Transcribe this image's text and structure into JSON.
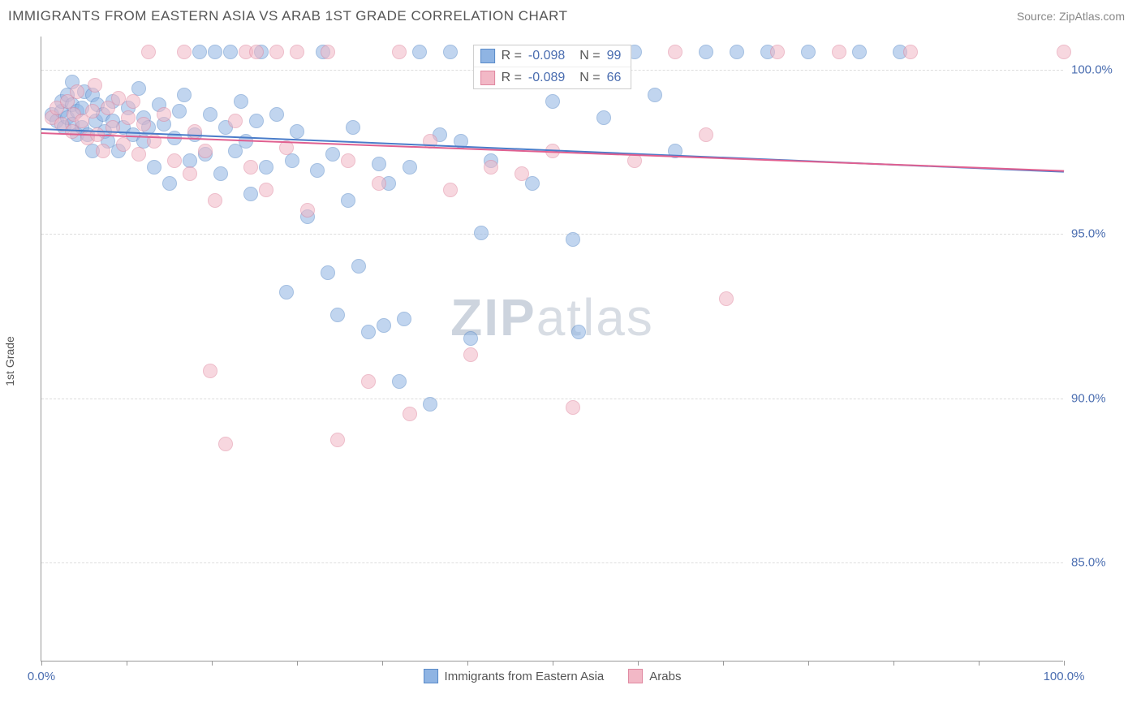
{
  "header": {
    "title": "IMMIGRANTS FROM EASTERN ASIA VS ARAB 1ST GRADE CORRELATION CHART",
    "source": "Source: ZipAtlas.com"
  },
  "chart": {
    "type": "scatter",
    "ylabel": "1st Grade",
    "watermark_bold": "ZIP",
    "watermark_light": "atlas",
    "background_color": "#ffffff",
    "grid_color": "#dddddd",
    "axis_color": "#999999",
    "label_color": "#4a6db0",
    "xlim": [
      0,
      100
    ],
    "ylim": [
      82,
      101
    ],
    "x_ticks": [
      0,
      8.3,
      16.7,
      25,
      33.3,
      41.7,
      50,
      58.3,
      66.7,
      75,
      83.3,
      91.7,
      100
    ],
    "x_tick_labels": {
      "0": "0.0%",
      "100": "100.0%"
    },
    "y_ticks": [
      85,
      90,
      95,
      100
    ],
    "y_tick_labels": {
      "85": "85.0%",
      "90": "90.0%",
      "95": "95.0%",
      "100": "100.0%"
    },
    "marker_size": 18,
    "series": [
      {
        "id": "a",
        "name": "Immigrants from Eastern Asia",
        "fill_color": "#8fb4e3",
        "border_color": "#5a8bc9",
        "trend_color": "#4a7cc9",
        "R": "-0.098",
        "N": "99",
        "trend": {
          "x1": 0,
          "y1": 98.2,
          "x2": 100,
          "y2": 96.9
        },
        "points": [
          [
            1,
            98.6
          ],
          [
            1.5,
            98.4
          ],
          [
            2,
            98.7
          ],
          [
            2,
            99.0
          ],
          [
            2.2,
            98.2
          ],
          [
            2.5,
            98.5
          ],
          [
            2.5,
            99.2
          ],
          [
            3,
            98.3
          ],
          [
            3,
            98.9
          ],
          [
            3,
            99.6
          ],
          [
            3.5,
            98.0
          ],
          [
            3.5,
            98.7
          ],
          [
            4,
            98.2
          ],
          [
            4,
            98.8
          ],
          [
            4.2,
            99.3
          ],
          [
            4.5,
            98.0
          ],
          [
            5,
            99.2
          ],
          [
            5,
            97.5
          ],
          [
            5.3,
            98.4
          ],
          [
            5.5,
            98.9
          ],
          [
            6,
            98.6
          ],
          [
            6.2,
            98.1
          ],
          [
            6.5,
            97.8
          ],
          [
            7,
            98.4
          ],
          [
            7,
            99.0
          ],
          [
            7.5,
            97.5
          ],
          [
            8,
            98.2
          ],
          [
            8.5,
            98.8
          ],
          [
            9,
            98.0
          ],
          [
            9.5,
            99.4
          ],
          [
            10,
            97.8
          ],
          [
            10,
            98.5
          ],
          [
            10.5,
            98.2
          ],
          [
            11,
            97.0
          ],
          [
            11.5,
            98.9
          ],
          [
            12,
            98.3
          ],
          [
            12.5,
            96.5
          ],
          [
            13,
            97.9
          ],
          [
            13.5,
            98.7
          ],
          [
            14,
            99.2
          ],
          [
            14.5,
            97.2
          ],
          [
            15,
            98.0
          ],
          [
            15.5,
            100.5
          ],
          [
            16,
            97.4
          ],
          [
            16.5,
            98.6
          ],
          [
            17,
            100.5
          ],
          [
            17.5,
            96.8
          ],
          [
            18,
            98.2
          ],
          [
            18.5,
            100.5
          ],
          [
            19,
            97.5
          ],
          [
            19.5,
            99.0
          ],
          [
            20,
            97.8
          ],
          [
            20.5,
            96.2
          ],
          [
            21,
            98.4
          ],
          [
            21.5,
            100.5
          ],
          [
            22,
            97.0
          ],
          [
            23,
            98.6
          ],
          [
            24,
            93.2
          ],
          [
            24.5,
            97.2
          ],
          [
            25,
            98.1
          ],
          [
            26,
            95.5
          ],
          [
            27,
            96.9
          ],
          [
            27.5,
            100.5
          ],
          [
            28,
            93.8
          ],
          [
            28.5,
            97.4
          ],
          [
            29,
            92.5
          ],
          [
            30,
            96.0
          ],
          [
            30.5,
            98.2
          ],
          [
            31,
            94.0
          ],
          [
            32,
            92.0
          ],
          [
            33,
            97.1
          ],
          [
            33.5,
            92.2
          ],
          [
            34,
            96.5
          ],
          [
            35,
            90.5
          ],
          [
            35.5,
            92.4
          ],
          [
            36,
            97.0
          ],
          [
            37,
            100.5
          ],
          [
            38,
            89.8
          ],
          [
            39,
            98.0
          ],
          [
            40,
            100.5
          ],
          [
            41,
            97.8
          ],
          [
            42,
            91.8
          ],
          [
            43,
            95.0
          ],
          [
            44,
            97.2
          ],
          [
            46,
            100.5
          ],
          [
            48,
            96.5
          ],
          [
            50,
            99.0
          ],
          [
            52,
            94.8
          ],
          [
            52.5,
            92.0
          ],
          [
            55,
            98.5
          ],
          [
            58,
            100.5
          ],
          [
            60,
            99.2
          ],
          [
            62,
            97.5
          ],
          [
            65,
            100.5
          ],
          [
            68,
            100.5
          ],
          [
            71,
            100.5
          ],
          [
            75,
            100.5
          ],
          [
            80,
            100.5
          ],
          [
            84,
            100.5
          ]
        ]
      },
      {
        "id": "b",
        "name": "Arabs",
        "fill_color": "#f2b8c6",
        "border_color": "#e088a0",
        "trend_color": "#e06090",
        "R": "-0.089",
        "N": "66",
        "trend": {
          "x1": 0,
          "y1": 98.1,
          "x2": 100,
          "y2": 96.95
        },
        "points": [
          [
            1,
            98.5
          ],
          [
            1.5,
            98.8
          ],
          [
            2,
            98.3
          ],
          [
            2.5,
            99.0
          ],
          [
            3,
            98.1
          ],
          [
            3.2,
            98.6
          ],
          [
            3.5,
            99.3
          ],
          [
            4,
            98.4
          ],
          [
            4.5,
            97.9
          ],
          [
            5,
            98.7
          ],
          [
            5.2,
            99.5
          ],
          [
            5.5,
            98.0
          ],
          [
            6,
            97.5
          ],
          [
            6.5,
            98.8
          ],
          [
            7,
            98.2
          ],
          [
            7.5,
            99.1
          ],
          [
            8,
            97.7
          ],
          [
            8.5,
            98.5
          ],
          [
            9,
            99.0
          ],
          [
            9.5,
            97.4
          ],
          [
            10,
            98.3
          ],
          [
            10.5,
            100.5
          ],
          [
            11,
            97.8
          ],
          [
            12,
            98.6
          ],
          [
            13,
            97.2
          ],
          [
            14,
            100.5
          ],
          [
            14.5,
            96.8
          ],
          [
            15,
            98.1
          ],
          [
            16,
            97.5
          ],
          [
            16.5,
            90.8
          ],
          [
            17,
            96.0
          ],
          [
            18,
            88.6
          ],
          [
            19,
            98.4
          ],
          [
            20,
            100.5
          ],
          [
            20.5,
            97.0
          ],
          [
            21,
            100.5
          ],
          [
            22,
            96.3
          ],
          [
            23,
            100.5
          ],
          [
            24,
            97.6
          ],
          [
            25,
            100.5
          ],
          [
            26,
            95.7
          ],
          [
            28,
            100.5
          ],
          [
            29,
            88.7
          ],
          [
            30,
            97.2
          ],
          [
            32,
            90.5
          ],
          [
            33,
            96.5
          ],
          [
            35,
            100.5
          ],
          [
            36,
            89.5
          ],
          [
            38,
            97.8
          ],
          [
            40,
            96.3
          ],
          [
            42,
            91.3
          ],
          [
            44,
            97.0
          ],
          [
            45,
            100.5
          ],
          [
            47,
            96.8
          ],
          [
            48,
            100.5
          ],
          [
            50,
            97.5
          ],
          [
            52,
            89.7
          ],
          [
            55,
            100.5
          ],
          [
            58,
            97.2
          ],
          [
            62,
            100.5
          ],
          [
            65,
            98.0
          ],
          [
            67,
            93.0
          ],
          [
            72,
            100.5
          ],
          [
            78,
            100.5
          ],
          [
            85,
            100.5
          ],
          [
            100,
            100.5
          ]
        ]
      }
    ],
    "stats_labels": {
      "R": "R =",
      "N": "N ="
    },
    "legend": [
      {
        "series": "a"
      },
      {
        "series": "b"
      }
    ]
  }
}
